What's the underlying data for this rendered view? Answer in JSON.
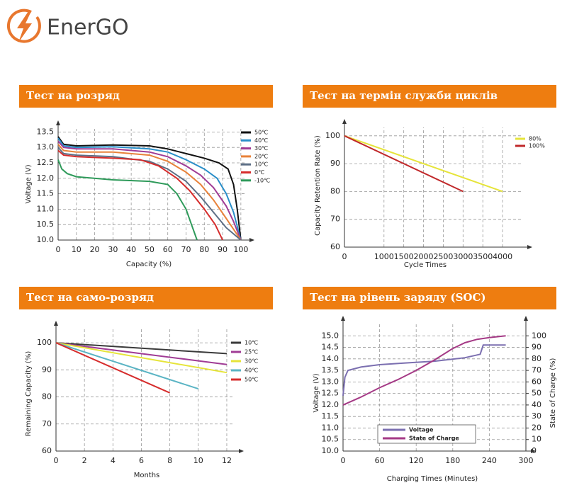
{
  "logo": "EnerGO",
  "chart_data": [
    {
      "type": "line",
      "title": "Тест на розряд",
      "x_label": "Capacity (%)",
      "y_label": "Voltage (V)",
      "xlim": [
        0,
        102
      ],
      "ylim": [
        10,
        13.6
      ],
      "grid": true,
      "xticks": [
        0,
        10,
        20,
        30,
        40,
        50,
        60,
        70,
        80,
        90,
        100
      ],
      "yticks": [
        {
          "value": 10,
          "label": "10.0"
        },
        10.5,
        {
          "value": 11,
          "label": "11.0"
        },
        11.5,
        {
          "value": 12,
          "label": "12.0"
        },
        12.5,
        {
          "value": 13,
          "label": "13.0"
        },
        13.5
      ],
      "series": [
        {
          "name": "50℃",
          "color": "#111111",
          "x": [
            0,
            3,
            10,
            30,
            50,
            60,
            70,
            80,
            88,
            93,
            96,
            98,
            100
          ],
          "values": [
            13.35,
            13.1,
            13.05,
            13.08,
            13.05,
            12.95,
            12.8,
            12.65,
            12.5,
            12.3,
            11.8,
            11.0,
            10.0
          ]
        },
        {
          "name": "40℃",
          "color": "#2a8fc9",
          "x": [
            0,
            3,
            10,
            30,
            50,
            60,
            70,
            80,
            87,
            92,
            96,
            100
          ],
          "values": [
            13.3,
            13.05,
            13.0,
            13.02,
            12.95,
            12.85,
            12.6,
            12.3,
            12.0,
            11.5,
            10.9,
            10.0
          ]
        },
        {
          "name": "30℃",
          "color": "#a03c95",
          "x": [
            0,
            3,
            10,
            30,
            50,
            60,
            70,
            78,
            85,
            92,
            96,
            100
          ],
          "values": [
            13.2,
            13.0,
            12.95,
            12.95,
            12.85,
            12.7,
            12.4,
            12.1,
            11.7,
            11.1,
            10.6,
            10.0
          ]
        },
        {
          "name": "20℃",
          "color": "#e8823a",
          "x": [
            0,
            3,
            10,
            30,
            50,
            60,
            70,
            78,
            85,
            92,
            100
          ],
          "values": [
            13.1,
            12.9,
            12.85,
            12.85,
            12.75,
            12.55,
            12.2,
            11.8,
            11.3,
            10.7,
            10.0
          ]
        },
        {
          "name": "10℃",
          "color": "#5d6f86",
          "x": [
            0,
            3,
            10,
            30,
            50,
            60,
            70,
            78,
            85,
            92,
            100
          ],
          "values": [
            13.0,
            12.8,
            12.75,
            12.7,
            12.55,
            12.3,
            11.9,
            11.4,
            10.9,
            10.4,
            10.0
          ]
        },
        {
          "name": "0℃",
          "color": "#d62c2c",
          "x": [
            0,
            3,
            10,
            30,
            45,
            55,
            65,
            72,
            80,
            86,
            90
          ],
          "values": [
            12.9,
            12.75,
            12.7,
            12.65,
            12.6,
            12.4,
            12.0,
            11.6,
            11.0,
            10.5,
            10.0
          ]
        },
        {
          "name": "-10℃",
          "color": "#2e9a5a",
          "x": [
            0,
            2,
            5,
            10,
            30,
            50,
            60,
            65,
            70,
            73,
            76
          ],
          "values": [
            12.6,
            12.3,
            12.15,
            12.05,
            11.95,
            11.9,
            11.8,
            11.5,
            11.0,
            10.5,
            10.0
          ]
        }
      ]
    },
    {
      "type": "line",
      "title": "Тест на термін служби циклів",
      "x_label": "Cycle Times",
      "y_label": "Capacity Retention Rate (%)",
      "xlim": [
        0,
        4500
      ],
      "ylim": [
        60,
        103
      ],
      "grid": true,
      "xticks": [
        0,
        1000,
        1500,
        2000,
        2500,
        3000,
        3500,
        4000
      ],
      "yticks": [
        60,
        70,
        80,
        90,
        100
      ],
      "series": [
        {
          "name": "80%",
          "color": "#e6e43a",
          "x": [
            0,
            4000
          ],
          "values": [
            100,
            80
          ]
        },
        {
          "name": "100%",
          "color": "#c0282a",
          "x": [
            0,
            3000
          ],
          "values": [
            100,
            80
          ]
        }
      ]
    },
    {
      "type": "line",
      "title": "Тест на само-розряд",
      "x_label": "Months",
      "y_label": "Remaining Capacity (%)",
      "xlim": [
        0,
        12.5
      ],
      "ylim": [
        60,
        105
      ],
      "grid": true,
      "xticks": [
        0,
        2,
        4,
        6,
        8,
        10,
        12
      ],
      "yticks": [
        60,
        70,
        80,
        90,
        100
      ],
      "series": [
        {
          "name": "10℃",
          "color": "#3a3a3a",
          "x": [
            0,
            12
          ],
          "values": [
            100,
            96
          ]
        },
        {
          "name": "25℃",
          "color": "#a03c95",
          "x": [
            0,
            12
          ],
          "values": [
            100,
            92
          ]
        },
        {
          "name": "30℃",
          "color": "#e6e43a",
          "x": [
            0,
            12
          ],
          "values": [
            100,
            89
          ]
        },
        {
          "name": "40℃",
          "color": "#5ab4c4",
          "x": [
            0,
            10
          ],
          "values": [
            100,
            83
          ]
        },
        {
          "name": "50℃",
          "color": "#d62c2c",
          "x": [
            0,
            8
          ],
          "values": [
            100,
            81.5
          ]
        }
      ]
    },
    {
      "type": "line",
      "title": "Тест на рівень заряду (SOC)",
      "x_label": "Charging Times (Minutes)",
      "y_label": "Voltage (V)",
      "y2_label": "State of Charge (%)",
      "xlim": [
        0,
        300
      ],
      "ylim": [
        10,
        15.5
      ],
      "y2lim": [
        0,
        110
      ],
      "grid": true,
      "xticks": [
        0,
        60,
        120,
        180,
        240,
        300
      ],
      "yticks": [
        {
          "value": 10,
          "label": "10.0"
        },
        10.5,
        {
          "value": 11,
          "label": "11.0"
        },
        11.5,
        {
          "value": 12,
          "label": "12.0"
        },
        12.5,
        {
          "value": 13,
          "label": "13.0"
        },
        13.5,
        {
          "value": 14,
          "label": "14.0"
        },
        14.5,
        {
          "value": 15,
          "label": "15.0"
        }
      ],
      "y2ticks": [
        0,
        10,
        20,
        30,
        40,
        50,
        60,
        70,
        80,
        90,
        100
      ],
      "series": [
        {
          "name": "Voltage",
          "color": "#7b6fb0",
          "x": [
            0,
            3,
            8,
            30,
            60,
            100,
            150,
            200,
            225,
            230,
            267
          ],
          "values": [
            12.4,
            13.2,
            13.5,
            13.65,
            13.75,
            13.82,
            13.9,
            14.05,
            14.2,
            14.6,
            14.6
          ]
        },
        {
          "name": "State of Charge",
          "color": "#a53a86",
          "axis": "y2",
          "x": [
            0,
            30,
            60,
            90,
            120,
            150,
            180,
            200,
            220,
            240,
            267
          ],
          "values": [
            40,
            47,
            55,
            62,
            70,
            79,
            89,
            94,
            97,
            98.5,
            100
          ]
        }
      ]
    }
  ]
}
